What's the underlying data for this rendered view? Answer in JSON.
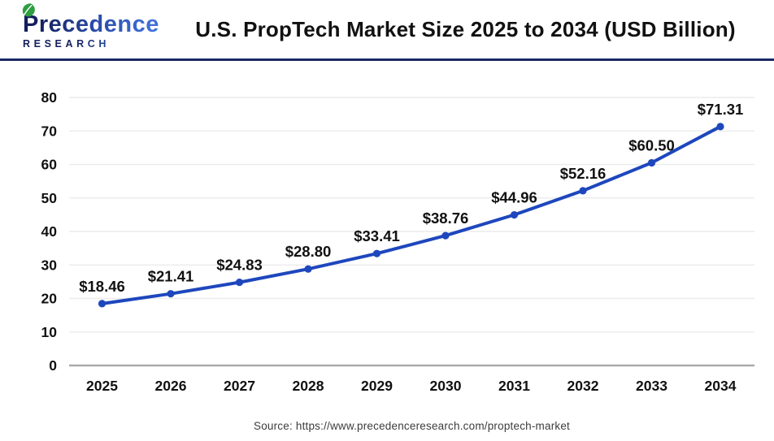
{
  "header": {
    "logo": {
      "line1": "Precedence",
      "line2": "RESEARCH",
      "leaf_icon": "leaf-icon"
    },
    "title": "U.S. PropTech Market Size 2025 to 2034 (USD Billion)"
  },
  "chart_data": {
    "type": "line",
    "title": "U.S. PropTech Market Size 2025 to 2034 (USD Billion)",
    "categories": [
      "2025",
      "2026",
      "2027",
      "2028",
      "2029",
      "2030",
      "2031",
      "2032",
      "2033",
      "2034"
    ],
    "series": [
      {
        "name": "U.S. PropTech Market Size (USD Billion)",
        "values": [
          18.46,
          21.41,
          24.83,
          28.8,
          33.41,
          38.76,
          44.96,
          52.16,
          60.5,
          71.31
        ],
        "labels": [
          "$18.46",
          "$21.41",
          "$24.83",
          "$28.80",
          "$33.41",
          "$38.76",
          "$44.96",
          "$52.16",
          "$60.50",
          "$71.31"
        ]
      }
    ],
    "xlabel": "",
    "ylabel": "",
    "ylim": [
      0,
      80
    ],
    "yticks": [
      0,
      10,
      20,
      30,
      40,
      50,
      60,
      70,
      80
    ],
    "grid": true,
    "legend_position": "none"
  },
  "footer": {
    "source": "Source: https://www.precedenceresearch.com/proptech-market"
  },
  "colors": {
    "line": "#1e47bd",
    "marker": "#1e47bd",
    "grid": "#ececec",
    "axis_baseline": "#ababab",
    "text": "#111111",
    "divider": "#1b2766",
    "logo_dark": "#141f5c",
    "logo_blue": "#3f6fd9",
    "leaf_green": "#2f9e41",
    "source_text": "#3c3c3c",
    "background": "#ffffff"
  }
}
